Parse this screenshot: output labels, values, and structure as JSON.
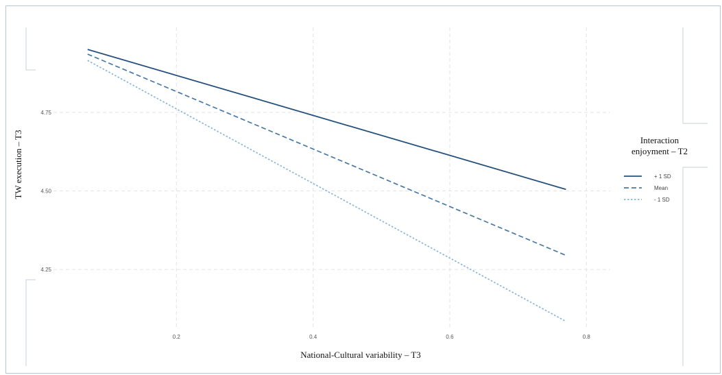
{
  "chart_data": {
    "type": "line",
    "title": "",
    "xlabel": "National-Cultural variability – T3",
    "ylabel": "TW execution – T3",
    "xlim": [
      0.0,
      0.885
    ],
    "ylim": [
      4.065,
      5.02
    ],
    "xticks": [
      0.2,
      0.4,
      0.6,
      0.8
    ],
    "yticks": [
      4.25,
      4.5,
      4.75
    ],
    "xtick_labels": [
      "0.2",
      "0.4",
      "0.6",
      "0.8"
    ],
    "ytick_labels": [
      "4.25",
      "4.50",
      "4.75"
    ],
    "grid": true,
    "legend": {
      "title": "Interaction enjoyment – T2",
      "title_lines": [
        "Interaction",
        "enjoyment – T2"
      ],
      "placement": "right"
    },
    "series": [
      {
        "name": "+ 1 SD",
        "color": "#24507e",
        "style": "solid",
        "x": [
          0.07,
          0.77
        ],
        "y": [
          4.95,
          4.505
        ]
      },
      {
        "name": "Mean",
        "color": "#4878a6",
        "style": "dashed",
        "x": [
          0.07,
          0.77
        ],
        "y": [
          4.935,
          4.295
        ]
      },
      {
        "name": "- 1 SD",
        "color": "#86b4dc",
        "style": "dotted",
        "x": [
          0.07,
          0.77
        ],
        "y": [
          4.915,
          4.085
        ]
      }
    ]
  }
}
